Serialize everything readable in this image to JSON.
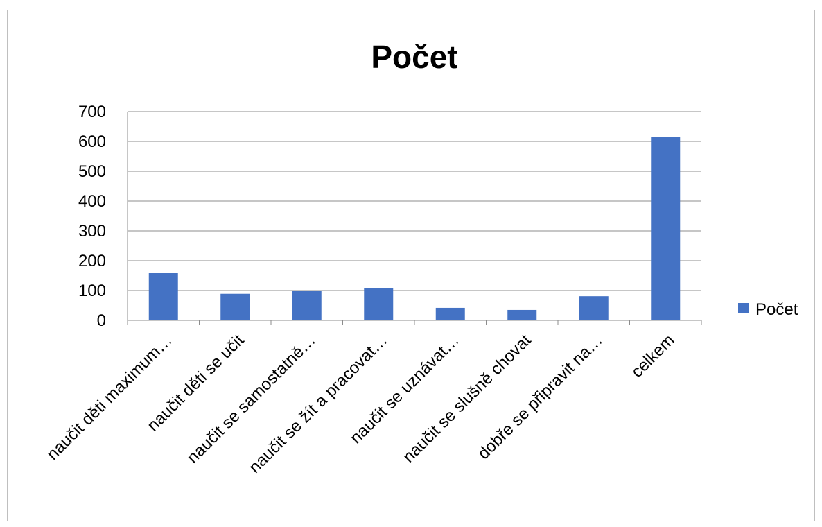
{
  "chart_data": {
    "type": "bar",
    "title": "Počet",
    "xlabel": "",
    "ylabel": "",
    "categories": [
      "naučit děti maximum…",
      "naučit děti se učit",
      "naučit se samostatně…",
      "naučit se žít a pracovat…",
      "naučit se uznávat…",
      "naučit se slušně chovat",
      "dobře se připravit na…",
      "celkem"
    ],
    "series": [
      {
        "name": "Počet",
        "color": "#4472C4",
        "values": [
          159,
          89,
          99,
          109,
          42,
          35,
          81,
          616
        ]
      }
    ],
    "ylim": [
      0,
      700
    ],
    "yticks": [
      0,
      100,
      200,
      300,
      400,
      500,
      600,
      700
    ],
    "ytick_labels": [
      "0",
      "100",
      "200",
      "300",
      "400",
      "500",
      "600",
      "700"
    ],
    "grid": true,
    "legend_position": "right"
  }
}
